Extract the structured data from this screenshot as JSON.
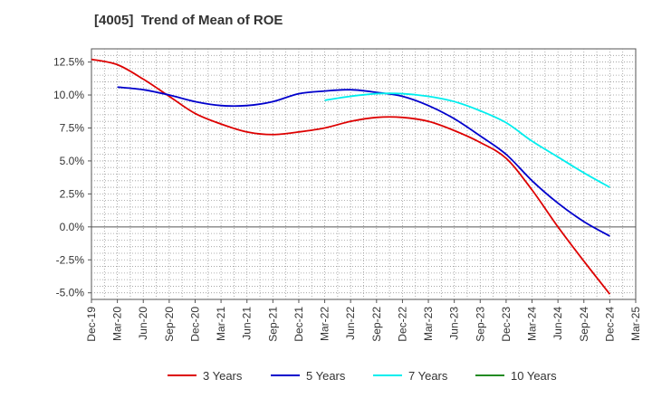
{
  "chart_data": {
    "type": "line",
    "title": "[4005]  Trend of Mean of ROE",
    "xlabel": "",
    "ylabel": "",
    "ylim": [
      -5.5,
      13.5
    ],
    "grid": true,
    "legend_position": "bottom",
    "y_ticks": [
      {
        "value": 12.5,
        "label": "12.5%"
      },
      {
        "value": 10.0,
        "label": "10.0%"
      },
      {
        "value": 7.5,
        "label": "7.5%"
      },
      {
        "value": 5.0,
        "label": "5.0%"
      },
      {
        "value": 2.5,
        "label": "2.5%"
      },
      {
        "value": 0.0,
        "label": "0.0%"
      },
      {
        "value": -2.5,
        "label": "-2.5%"
      },
      {
        "value": -5.0,
        "label": "-5.0%"
      }
    ],
    "categories": [
      "Dec-19",
      "Mar-20",
      "Jun-20",
      "Sep-20",
      "Dec-20",
      "Mar-21",
      "Jun-21",
      "Sep-21",
      "Dec-21",
      "Mar-22",
      "Jun-22",
      "Sep-22",
      "Dec-22",
      "Mar-23",
      "Jun-23",
      "Sep-23",
      "Dec-23",
      "Mar-24",
      "Jun-24",
      "Sep-24",
      "Dec-24",
      "Mar-25"
    ],
    "series": [
      {
        "name": "3 Years",
        "color": "#dd0000",
        "values": [
          12.7,
          12.3,
          11.2,
          9.9,
          8.6,
          7.8,
          7.2,
          7.0,
          7.2,
          7.5,
          8.0,
          8.3,
          8.3,
          8.0,
          7.3,
          6.4,
          5.2,
          2.8,
          0.0,
          -2.6,
          -5.1,
          null
        ]
      },
      {
        "name": "5 Years",
        "color": "#0000cc",
        "values": [
          null,
          10.6,
          10.4,
          10.0,
          9.5,
          9.2,
          9.2,
          9.5,
          10.1,
          10.3,
          10.4,
          10.2,
          9.9,
          9.2,
          8.2,
          6.9,
          5.5,
          3.5,
          1.8,
          0.4,
          -0.7,
          null
        ]
      },
      {
        "name": "7 Years",
        "color": "#00eeee",
        "values": [
          null,
          null,
          null,
          null,
          null,
          null,
          null,
          null,
          null,
          9.6,
          9.9,
          10.1,
          10.1,
          9.9,
          9.5,
          8.8,
          7.9,
          6.5,
          5.3,
          4.1,
          3.0,
          null
        ]
      },
      {
        "name": "10 Years",
        "color": "#228b22",
        "values": [
          null,
          null,
          null,
          null,
          null,
          null,
          null,
          null,
          null,
          null,
          null,
          null,
          null,
          null,
          null,
          null,
          null,
          null,
          null,
          null,
          null,
          null
        ]
      }
    ]
  }
}
